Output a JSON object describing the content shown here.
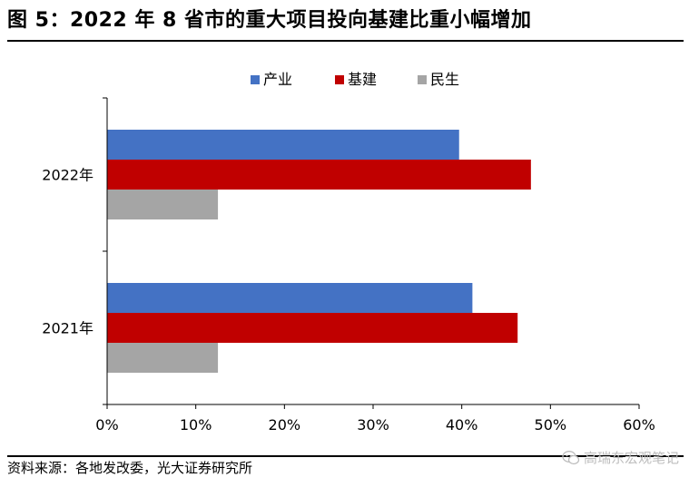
{
  "title": "图 5：2022 年 8 省市的重大项目投向基建比重小幅增加",
  "source": "资料来源：各地发改委，光大证券研究所",
  "watermark": {
    "text": "高瑞东宏观笔记",
    "icon": "wechat-icon"
  },
  "colors": {
    "产业": "#4472C4",
    "基建": "#C00000",
    "民生": "#A5A5A5"
  },
  "chart_data": {
    "type": "bar",
    "orientation": "horizontal",
    "categories": [
      "2022年",
      "2021年"
    ],
    "series": [
      {
        "name": "产业",
        "values": [
          0.397,
          0.412
        ]
      },
      {
        "name": "基建",
        "values": [
          0.478,
          0.463
        ]
      },
      {
        "name": "民生",
        "values": [
          0.125,
          0.125
        ]
      }
    ],
    "xlim": [
      0,
      0.6
    ],
    "xticks": [
      0,
      0.1,
      0.2,
      0.3,
      0.4,
      0.5,
      0.6
    ],
    "xtick_labels": [
      "0%",
      "10%",
      "20%",
      "30%",
      "40%",
      "50%",
      "60%"
    ],
    "legend": "top-center",
    "grid": false
  }
}
